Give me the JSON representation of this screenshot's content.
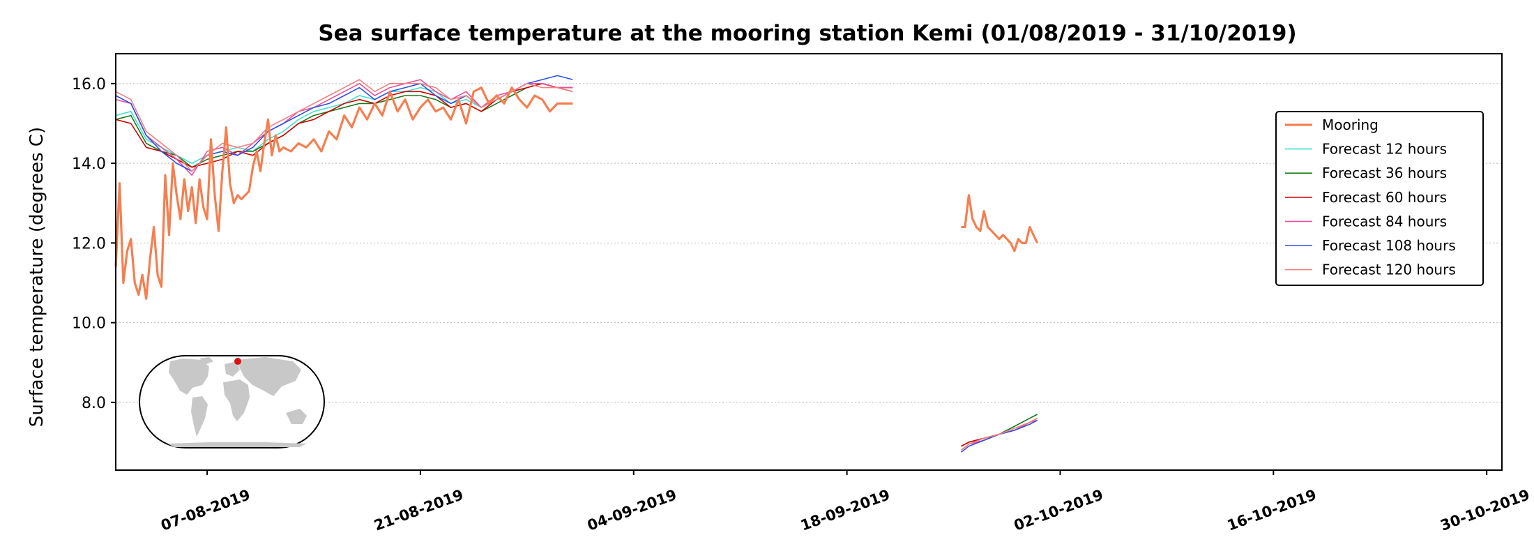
{
  "chart_data": {
    "type": "line",
    "title": "Sea surface temperature at the mooring station Kemi (01/08/2019 - 31/10/2019)",
    "xlabel": "",
    "ylabel": "Surface temperature (degrees C)",
    "xlim": [
      "2019-08-01",
      "2019-10-31"
    ],
    "ylim": [
      6.3,
      16.75
    ],
    "yticks": [
      8.0,
      10.0,
      12.0,
      14.0,
      16.0
    ],
    "ytick_labels": [
      "8.0",
      "10.0",
      "12.0",
      "14.0",
      "16.0"
    ],
    "xticks": [
      "2019-08-07",
      "2019-08-21",
      "2019-09-04",
      "2019-09-18",
      "2019-10-02",
      "2019-10-16",
      "2019-10-30"
    ],
    "xtick_labels": [
      "07-08-2019",
      "21-08-2019",
      "04-09-2019",
      "18-09-2019",
      "02-10-2019",
      "16-10-2019",
      "30-10-2019"
    ],
    "grid": "horizontal dotted",
    "legend_position": "upper right",
    "inset": "world map with station marker",
    "series": [
      {
        "name": "Mooring",
        "color": "#f47f50",
        "segments": [
          {
            "x": [
              "2019-08-01",
              "2019-08-01T06",
              "2019-08-01T12",
              "2019-08-01T18",
              "2019-08-02",
              "2019-08-02T06",
              "2019-08-02T12",
              "2019-08-02T18",
              "2019-08-03",
              "2019-08-03T06",
              "2019-08-03T12",
              "2019-08-03T18",
              "2019-08-04",
              "2019-08-04T06",
              "2019-08-04T12",
              "2019-08-04T18",
              "2019-08-05",
              "2019-08-05T06",
              "2019-08-05T12",
              "2019-08-05T18",
              "2019-08-06",
              "2019-08-06T06",
              "2019-08-06T12",
              "2019-08-06T18",
              "2019-08-07",
              "2019-08-07T06",
              "2019-08-07T12",
              "2019-08-07T18",
              "2019-08-08",
              "2019-08-08T06",
              "2019-08-08T12",
              "2019-08-08T18",
              "2019-08-09",
              "2019-08-09T06",
              "2019-08-09T12",
              "2019-08-09T18",
              "2019-08-10",
              "2019-08-10T06",
              "2019-08-10T12",
              "2019-08-10T18",
              "2019-08-11",
              "2019-08-11T06",
              "2019-08-11T12",
              "2019-08-11T18",
              "2019-08-12",
              "2019-08-12T12",
              "2019-08-13",
              "2019-08-13T12",
              "2019-08-14",
              "2019-08-14T12",
              "2019-08-15",
              "2019-08-15T12",
              "2019-08-16",
              "2019-08-16T12",
              "2019-08-17",
              "2019-08-17T12",
              "2019-08-18",
              "2019-08-18T12",
              "2019-08-19",
              "2019-08-19T12",
              "2019-08-20",
              "2019-08-20T12",
              "2019-08-21",
              "2019-08-21T12",
              "2019-08-22",
              "2019-08-22T12",
              "2019-08-23",
              "2019-08-23T12",
              "2019-08-24",
              "2019-08-24T12",
              "2019-08-25",
              "2019-08-25T12",
              "2019-08-26",
              "2019-08-26T12",
              "2019-08-27",
              "2019-08-27T12",
              "2019-08-28",
              "2019-08-28T12",
              "2019-08-29",
              "2019-08-29T12",
              "2019-08-30",
              "2019-08-30T12",
              "2019-08-31"
            ],
            "y": [
              11.4,
              13.5,
              11.0,
              11.8,
              12.1,
              11.0,
              10.7,
              11.2,
              10.6,
              11.6,
              12.4,
              11.2,
              10.9,
              13.7,
              12.2,
              14.0,
              13.2,
              12.6,
              13.6,
              12.8,
              13.4,
              12.5,
              13.6,
              12.9,
              12.6,
              14.6,
              13.2,
              12.3,
              13.8,
              14.9,
              13.5,
              13.0,
              13.2,
              13.1,
              13.2,
              13.3,
              13.9,
              14.3,
              13.8,
              14.5,
              15.1,
              14.2,
              14.7,
              14.3,
              14.4,
              14.3,
              14.5,
              14.4,
              14.6,
              14.3,
              14.8,
              14.6,
              15.2,
              14.9,
              15.4,
              15.1,
              15.5,
              15.2,
              15.8,
              15.3,
              15.6,
              15.1,
              15.4,
              15.6,
              15.3,
              15.4,
              15.1,
              15.6,
              15.0,
              15.8,
              15.9,
              15.5,
              15.7,
              15.5,
              15.9,
              15.6,
              15.4,
              15.7,
              15.6,
              15.3,
              15.5,
              15.5,
              15.5
            ]
          },
          {
            "x": [
              "2019-09-25T12",
              "2019-09-25T18",
              "2019-09-26",
              "2019-09-26T06",
              "2019-09-26T12",
              "2019-09-26T18",
              "2019-09-27",
              "2019-09-27T06",
              "2019-09-27T12",
              "2019-09-27T18",
              "2019-09-28",
              "2019-09-28T06",
              "2019-09-28T12",
              "2019-09-28T18",
              "2019-09-29",
              "2019-09-29T06",
              "2019-09-29T12",
              "2019-09-29T18",
              "2019-09-30",
              "2019-09-30T06",
              "2019-09-30T12"
            ],
            "y": [
              12.4,
              12.4,
              13.2,
              12.6,
              12.4,
              12.3,
              12.8,
              12.4,
              12.3,
              12.2,
              12.1,
              12.2,
              12.1,
              12.0,
              11.8,
              12.1,
              12.0,
              12.0,
              12.4,
              12.2,
              12.0
            ]
          }
        ]
      },
      {
        "name": "Forecast 12 hours",
        "color": "#40e0d0",
        "segments": [
          {
            "x": [
              "2019-08-01",
              "2019-08-02",
              "2019-08-03",
              "2019-08-04",
              "2019-08-05",
              "2019-08-06",
              "2019-08-07",
              "2019-08-08",
              "2019-08-09",
              "2019-08-10",
              "2019-08-11",
              "2019-08-12",
              "2019-08-13",
              "2019-08-14",
              "2019-08-15",
              "2019-08-16",
              "2019-08-17",
              "2019-08-18",
              "2019-08-19",
              "2019-08-20",
              "2019-08-21",
              "2019-08-22",
              "2019-08-23",
              "2019-08-24",
              "2019-08-25",
              "2019-08-26",
              "2019-08-27",
              "2019-08-28",
              "2019-08-29",
              "2019-08-30",
              "2019-08-31"
            ],
            "y": [
              15.2,
              15.3,
              14.6,
              14.4,
              14.2,
              14.0,
              14.2,
              14.3,
              14.4,
              14.3,
              14.6,
              14.8,
              15.1,
              15.3,
              15.4,
              15.5,
              15.7,
              15.6,
              15.8,
              15.8,
              15.9,
              15.8,
              15.5,
              15.6,
              15.4,
              15.6,
              15.8,
              16.0,
              16.0,
              15.9,
              15.9
            ]
          },
          {
            "x": [
              "2019-09-25T12",
              "2019-09-26",
              "2019-09-27",
              "2019-09-28",
              "2019-09-29",
              "2019-09-30",
              "2019-09-30T12"
            ],
            "y": [
              6.9,
              7.0,
              7.1,
              7.2,
              7.4,
              7.6,
              7.7
            ]
          }
        ]
      },
      {
        "name": "Forecast 36 hours",
        "color": "#1a7a1a",
        "segments": [
          {
            "x": [
              "2019-08-01",
              "2019-08-02",
              "2019-08-03",
              "2019-08-04",
              "2019-08-05",
              "2019-08-06",
              "2019-08-07",
              "2019-08-08",
              "2019-08-09",
              "2019-08-10",
              "2019-08-11",
              "2019-08-12",
              "2019-08-13",
              "2019-08-14",
              "2019-08-15",
              "2019-08-16",
              "2019-08-17",
              "2019-08-18",
              "2019-08-19",
              "2019-08-20",
              "2019-08-21",
              "2019-08-22",
              "2019-08-23",
              "2019-08-24",
              "2019-08-25",
              "2019-08-26",
              "2019-08-27",
              "2019-08-28",
              "2019-08-29",
              "2019-08-30",
              "2019-08-31"
            ],
            "y": [
              15.1,
              15.2,
              14.5,
              14.3,
              14.2,
              13.9,
              14.1,
              14.2,
              14.3,
              14.3,
              14.5,
              14.7,
              15.0,
              15.2,
              15.3,
              15.4,
              15.5,
              15.5,
              15.6,
              15.7,
              15.7,
              15.6,
              15.4,
              15.5,
              15.3,
              15.5,
              15.7,
              15.9,
              16.0,
              15.9,
              15.8
            ]
          },
          {
            "x": [
              "2019-09-25T12",
              "2019-09-26",
              "2019-09-27",
              "2019-09-28",
              "2019-09-29",
              "2019-09-30",
              "2019-09-30T12"
            ],
            "y": [
              6.9,
              7.0,
              7.1,
              7.2,
              7.4,
              7.6,
              7.7
            ]
          }
        ]
      },
      {
        "name": "Forecast 60 hours",
        "color": "#d40000",
        "segments": [
          {
            "x": [
              "2019-08-01",
              "2019-08-02",
              "2019-08-03",
              "2019-08-04",
              "2019-08-05",
              "2019-08-06",
              "2019-08-07",
              "2019-08-08",
              "2019-08-09",
              "2019-08-10",
              "2019-08-11",
              "2019-08-12",
              "2019-08-13",
              "2019-08-14",
              "2019-08-15",
              "2019-08-16",
              "2019-08-17",
              "2019-08-18",
              "2019-08-19",
              "2019-08-20",
              "2019-08-21",
              "2019-08-22",
              "2019-08-23",
              "2019-08-24",
              "2019-08-25",
              "2019-08-26",
              "2019-08-27",
              "2019-08-28",
              "2019-08-29",
              "2019-08-30",
              "2019-08-31"
            ],
            "y": [
              15.1,
              15.0,
              14.4,
              14.3,
              14.1,
              13.9,
              14.0,
              14.1,
              14.3,
              14.2,
              14.5,
              14.7,
              15.0,
              15.1,
              15.3,
              15.5,
              15.6,
              15.5,
              15.7,
              15.8,
              15.8,
              15.7,
              15.4,
              15.5,
              15.3,
              15.6,
              15.8,
              15.9,
              16.0,
              15.9,
              15.9
            ]
          },
          {
            "x": [
              "2019-09-25T12",
              "2019-09-26",
              "2019-09-27",
              "2019-09-28",
              "2019-09-29",
              "2019-09-30",
              "2019-09-30T12"
            ],
            "y": [
              6.9,
              7.0,
              7.1,
              7.2,
              7.3,
              7.5,
              7.6
            ]
          }
        ]
      },
      {
        "name": "Forecast 84 hours",
        "color": "#e8509c",
        "segments": [
          {
            "x": [
              "2019-08-01",
              "2019-08-02",
              "2019-08-03",
              "2019-08-04",
              "2019-08-05",
              "2019-08-06",
              "2019-08-07",
              "2019-08-08",
              "2019-08-09",
              "2019-08-10",
              "2019-08-11",
              "2019-08-12",
              "2019-08-13",
              "2019-08-14",
              "2019-08-15",
              "2019-08-16",
              "2019-08-17",
              "2019-08-18",
              "2019-08-19",
              "2019-08-20",
              "2019-08-21",
              "2019-08-22",
              "2019-08-23",
              "2019-08-24",
              "2019-08-25",
              "2019-08-26",
              "2019-08-27",
              "2019-08-28",
              "2019-08-29",
              "2019-08-30",
              "2019-08-31"
            ],
            "y": [
              15.6,
              15.5,
              14.7,
              14.4,
              14.1,
              13.7,
              14.3,
              14.4,
              14.2,
              14.5,
              14.8,
              15.0,
              15.3,
              15.4,
              15.6,
              15.8,
              16.0,
              15.7,
              15.9,
              16.0,
              16.1,
              15.8,
              15.6,
              15.8,
              15.4,
              15.7,
              15.8,
              16.0,
              16.0,
              15.9,
              15.9
            ]
          },
          {
            "x": [
              "2019-09-25T12",
              "2019-09-26",
              "2019-09-27",
              "2019-09-28",
              "2019-09-29",
              "2019-09-30",
              "2019-09-30T12"
            ],
            "y": [
              6.8,
              6.95,
              7.05,
              7.2,
              7.3,
              7.5,
              7.55
            ]
          }
        ]
      },
      {
        "name": "Forecast 108 hours",
        "color": "#3050e0",
        "segments": [
          {
            "x": [
              "2019-08-01",
              "2019-08-02",
              "2019-08-03",
              "2019-08-04",
              "2019-08-05",
              "2019-08-06",
              "2019-08-07",
              "2019-08-08",
              "2019-08-09",
              "2019-08-10",
              "2019-08-11",
              "2019-08-12",
              "2019-08-13",
              "2019-08-14",
              "2019-08-15",
              "2019-08-16",
              "2019-08-17",
              "2019-08-18",
              "2019-08-19",
              "2019-08-20",
              "2019-08-21",
              "2019-08-22",
              "2019-08-23",
              "2019-08-24",
              "2019-08-25",
              "2019-08-26",
              "2019-08-27",
              "2019-08-28",
              "2019-08-29",
              "2019-08-30",
              "2019-08-31"
            ],
            "y": [
              15.7,
              15.5,
              14.7,
              14.3,
              14.0,
              13.8,
              14.2,
              14.3,
              14.2,
              14.4,
              14.8,
              15.0,
              15.2,
              15.4,
              15.5,
              15.7,
              15.9,
              15.6,
              15.8,
              15.9,
              16.0,
              15.7,
              15.5,
              15.7,
              15.4,
              15.6,
              15.8,
              16.0,
              16.1,
              16.2,
              16.1
            ]
          },
          {
            "x": [
              "2019-09-25T12",
              "2019-09-26",
              "2019-09-27",
              "2019-09-28",
              "2019-09-29",
              "2019-09-30",
              "2019-09-30T12"
            ],
            "y": [
              6.75,
              6.9,
              7.05,
              7.2,
              7.3,
              7.45,
              7.55
            ]
          }
        ]
      },
      {
        "name": "Forecast 120 hours",
        "color": "#f08080",
        "segments": [
          {
            "x": [
              "2019-08-01",
              "2019-08-02",
              "2019-08-03",
              "2019-08-04",
              "2019-08-05",
              "2019-08-06",
              "2019-08-07",
              "2019-08-08",
              "2019-08-09",
              "2019-08-10",
              "2019-08-11",
              "2019-08-12",
              "2019-08-13",
              "2019-08-14",
              "2019-08-15",
              "2019-08-16",
              "2019-08-17",
              "2019-08-18",
              "2019-08-19",
              "2019-08-20",
              "2019-08-21",
              "2019-08-22",
              "2019-08-23",
              "2019-08-24",
              "2019-08-25",
              "2019-08-26",
              "2019-08-27",
              "2019-08-28",
              "2019-08-29",
              "2019-08-30",
              "2019-08-31"
            ],
            "y": [
              15.8,
              15.6,
              14.8,
              14.5,
              14.2,
              13.8,
              14.2,
              14.5,
              14.4,
              14.5,
              14.9,
              15.1,
              15.3,
              15.5,
              15.7,
              15.9,
              16.1,
              15.8,
              16.0,
              16.0,
              16.0,
              15.9,
              15.6,
              15.7,
              15.4,
              15.6,
              15.8,
              16.0,
              15.9,
              15.9,
              15.8
            ]
          },
          {
            "x": [
              "2019-09-25T12",
              "2019-09-26",
              "2019-09-27",
              "2019-09-28",
              "2019-09-29",
              "2019-09-30",
              "2019-09-30T12"
            ],
            "y": [
              6.8,
              6.95,
              7.1,
              7.2,
              7.35,
              7.5,
              7.6
            ]
          }
        ]
      }
    ]
  }
}
